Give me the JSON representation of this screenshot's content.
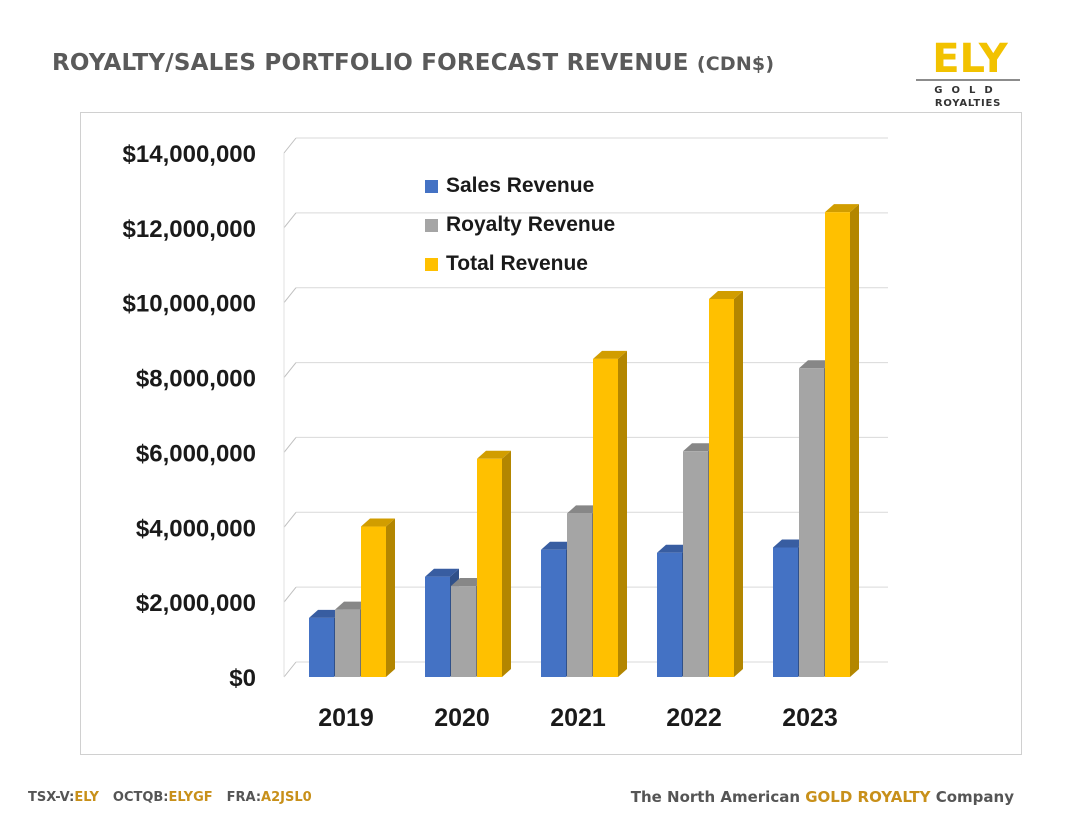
{
  "header": {
    "title_main": "ROYALTY/SALES PORTFOLIO FORECAST REVENUE",
    "title_unit": "(CDN$)"
  },
  "logo": {
    "mark_text": "ELY",
    "gold_text": "GOLD",
    "royalties_text": "ROYALTIES",
    "accent_color": "#f2c200"
  },
  "chart_data": {
    "type": "bar",
    "categories": [
      "2019",
      "2020",
      "2021",
      "2022",
      "2023"
    ],
    "series": [
      {
        "name": "Sales Revenue",
        "color": "#4472c4",
        "values": [
          1580000,
          2680000,
          3400000,
          3320000,
          3460000
        ]
      },
      {
        "name": "Royalty Revenue",
        "color": "#a5a5a5",
        "values": [
          1800000,
          2430000,
          4370000,
          6030000,
          8250000
        ]
      },
      {
        "name": "Total Revenue",
        "color": "#ffc000",
        "values": [
          4020000,
          5830000,
          8500000,
          10100000,
          12420000
        ]
      }
    ],
    "yticks": [
      "$0",
      "$2,000,000",
      "$4,000,000",
      "$6,000,000",
      "$8,000,000",
      "$10,000,000",
      "$12,000,000",
      "$14,000,000"
    ],
    "ylim": [
      0,
      14000000
    ],
    "grid": true,
    "legend": "top-left inside plot",
    "style": "3d-column"
  },
  "footer": {
    "tsx_label": "TSX-V:",
    "tsx_value": "ELY",
    "otc_label": "OCTQB:",
    "otc_value": "ELYGF",
    "fra_label": "FRA:",
    "fra_value": "A2JSL0",
    "tag_prefix": "The North American ",
    "tag_highlight": "GOLD ROYALTY",
    "tag_suffix": " Company"
  }
}
